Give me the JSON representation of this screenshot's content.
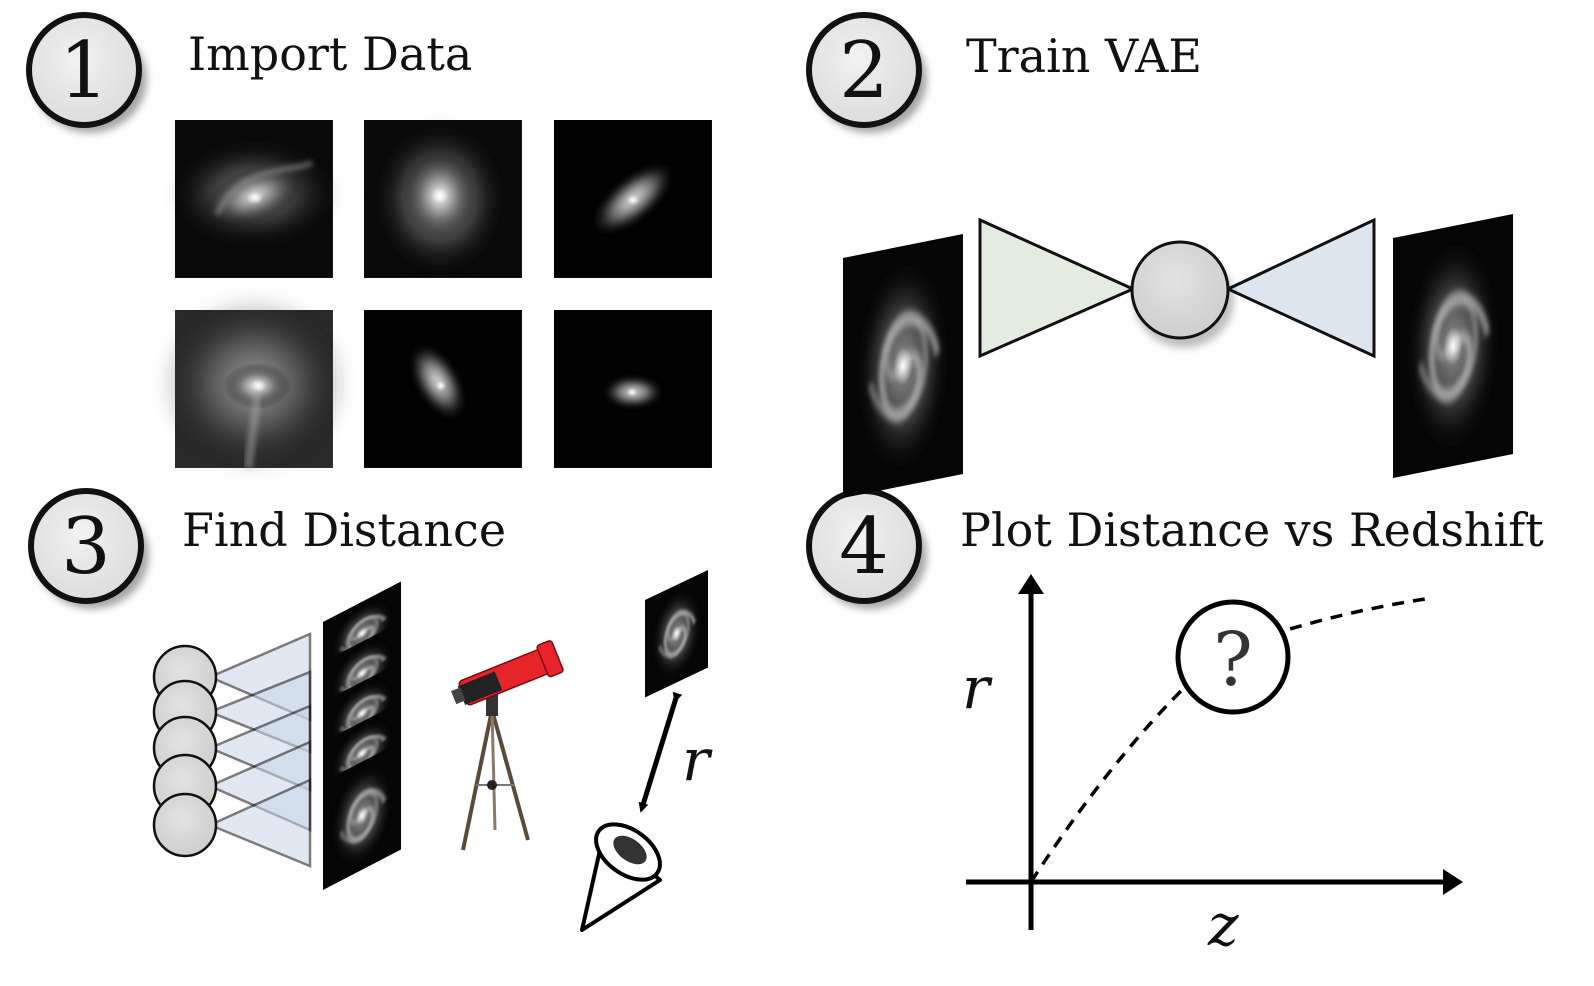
{
  "steps": [
    {
      "number": "1",
      "title": "Import Data"
    },
    {
      "number": "2",
      "title": "Train VAE"
    },
    {
      "number": "3",
      "title": "Find Distance"
    },
    {
      "number": "4",
      "title": "Plot Distance vs Redshift"
    }
  ],
  "find_distance": {
    "distance_symbol": "r"
  },
  "plot": {
    "y_axis_label": "r",
    "x_axis_label": "z",
    "unknown_marker": "?"
  },
  "colors": {
    "badge_fill": "#e6e6e6",
    "encoder_fill": "#e4ebe0",
    "decoder_fill": "#dde5ef",
    "latent_fill": "#d9d9d9",
    "network_plane_fill": "#c9d6e8",
    "telescope_tube": "#e8242b"
  },
  "icons": [
    "galaxy-image",
    "encoder-triangle",
    "decoder-triangle",
    "latent-node",
    "neural-network",
    "telescope",
    "observer-cone",
    "unknown-circle"
  ]
}
